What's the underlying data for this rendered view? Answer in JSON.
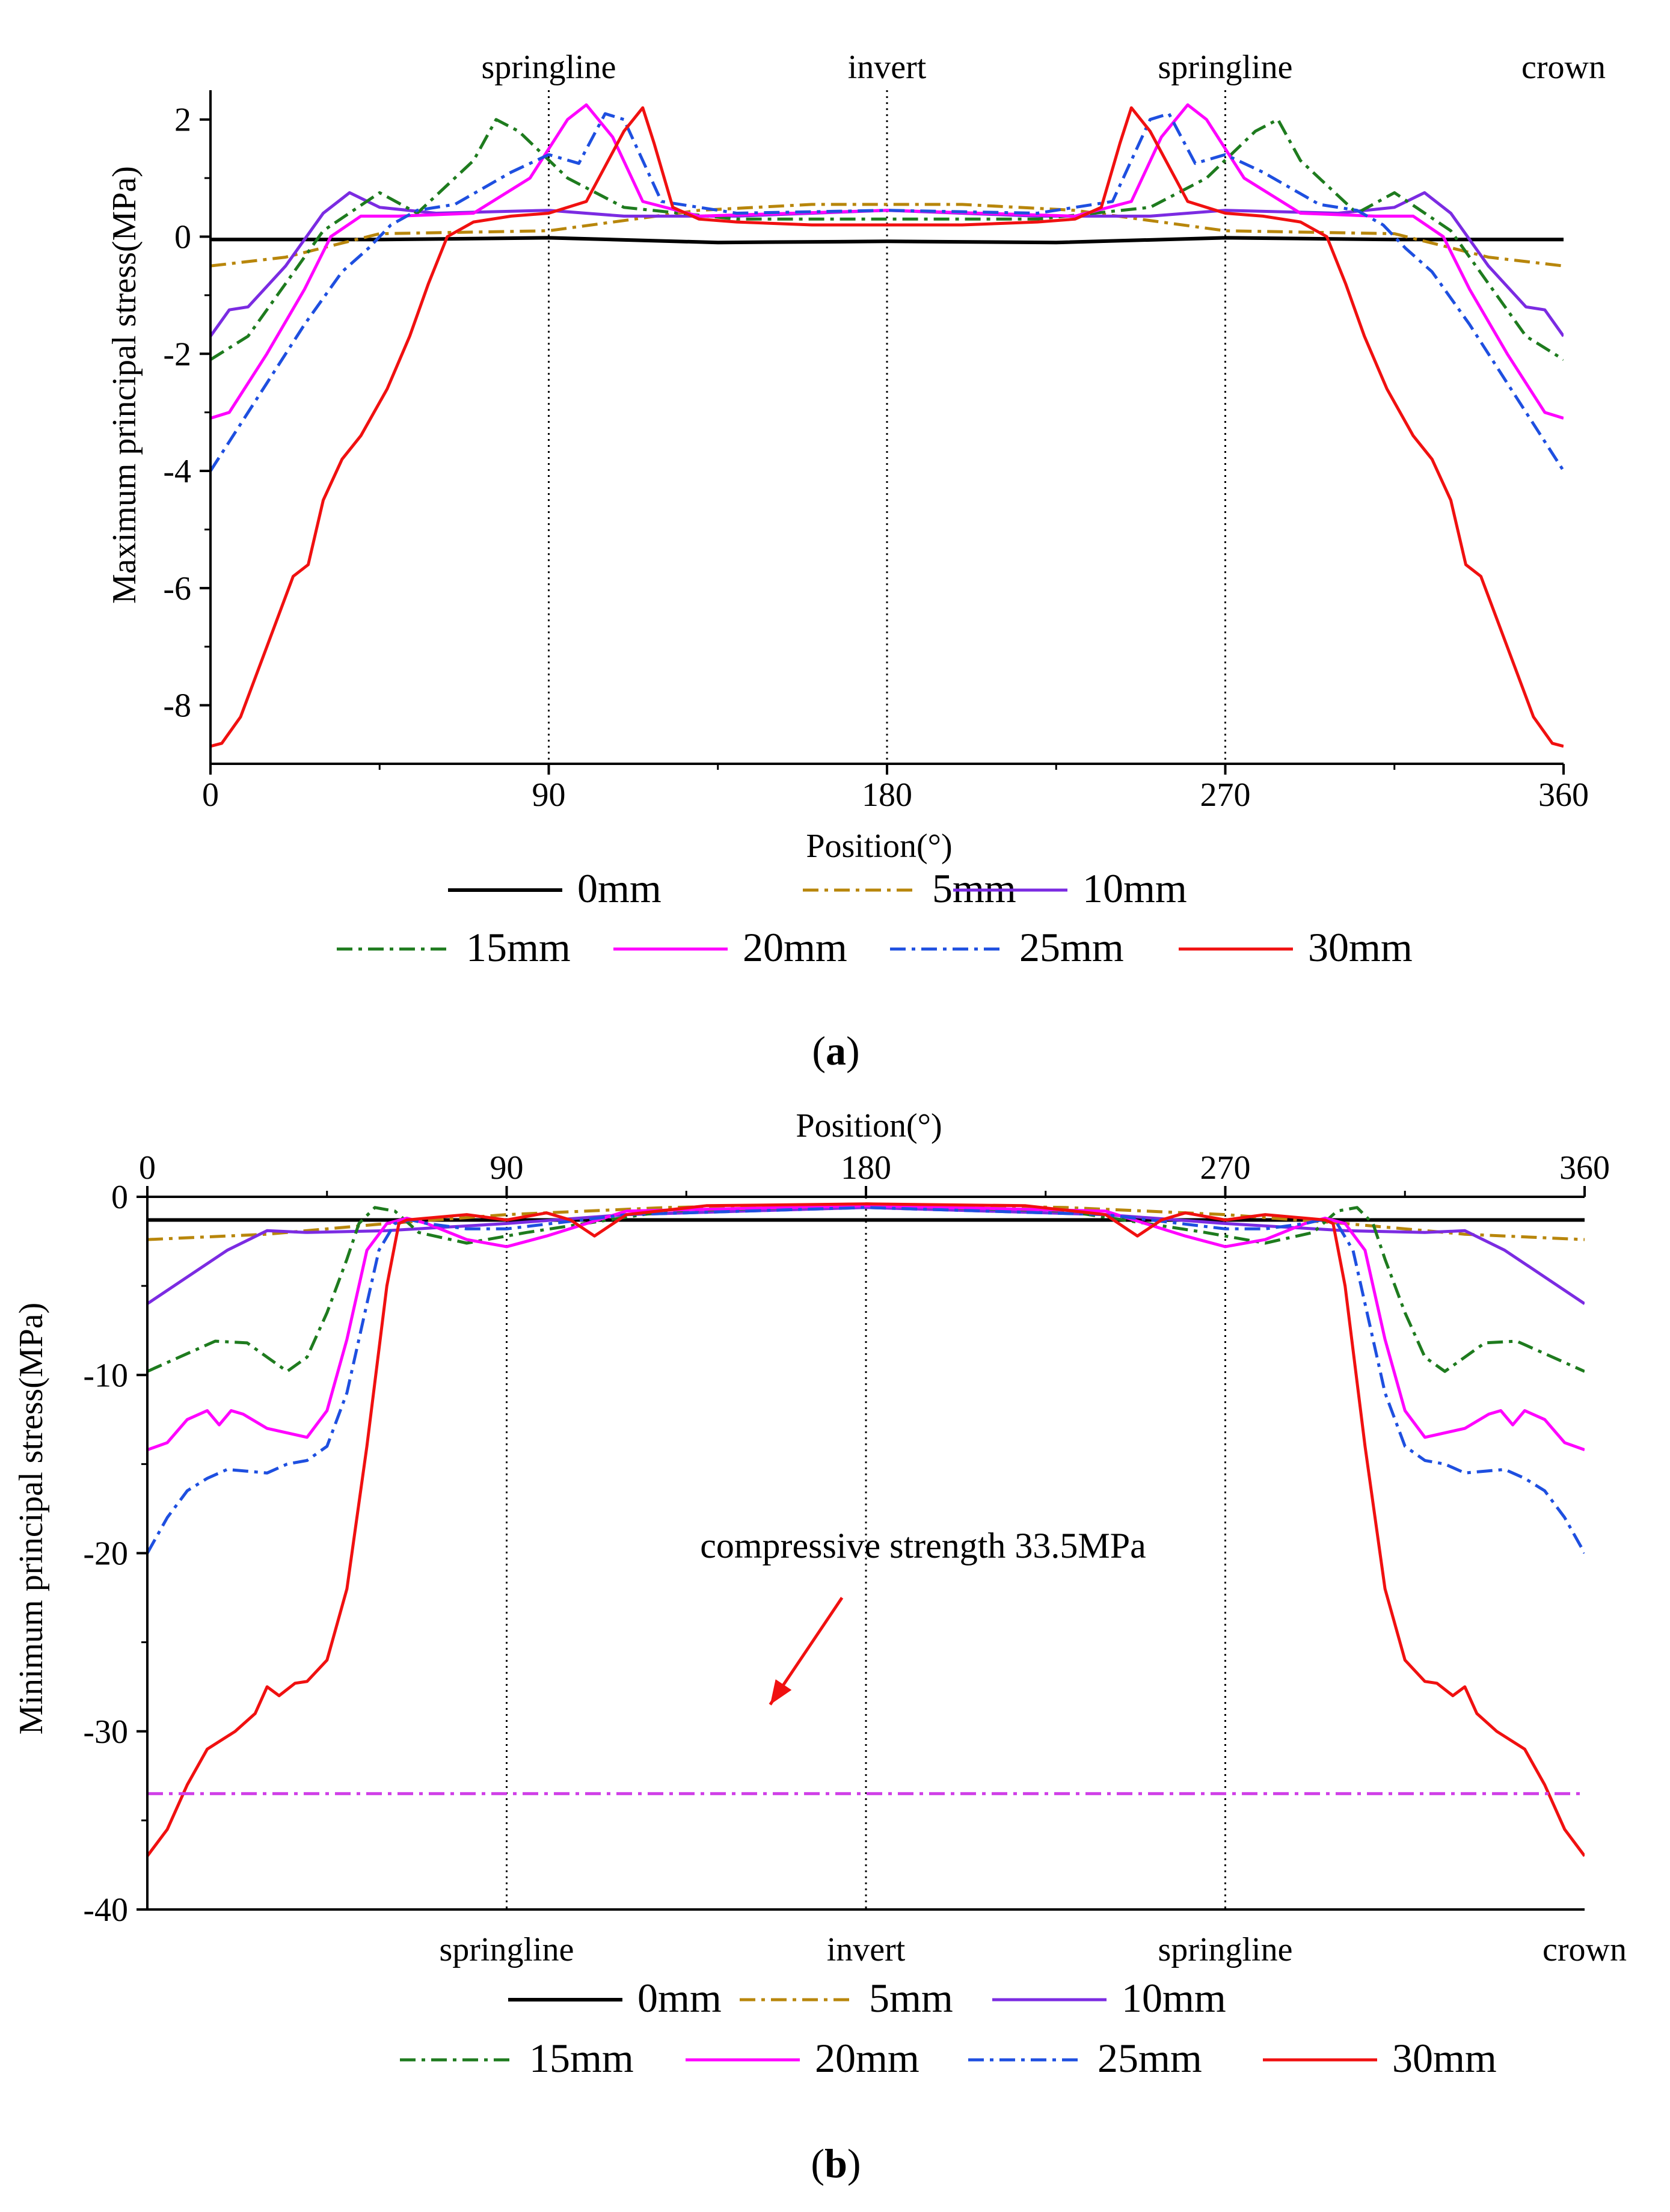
{
  "colors": {
    "s0": "#000000",
    "s5": "#B8860B",
    "s10": "#7B2BE2",
    "s15": "#1E7B1E",
    "s20": "#FF00FF",
    "s25": "#1E4FE0",
    "s30": "#F01010",
    "strength": "#D040E8",
    "arrow": "#F01010"
  },
  "chart_data": [
    {
      "type": "line",
      "caption_letter": "a",
      "xlabel": "Position(°)",
      "ylabel": "Maximum principal stress(MPa)",
      "xlim": [
        0,
        360
      ],
      "ylim": [
        -9,
        2.5
      ],
      "xticks": [
        0,
        90,
        180,
        270,
        360
      ],
      "yticks": [
        -8,
        -6,
        -4,
        -2,
        0,
        2
      ],
      "x_tick_labels": [
        "0",
        "90",
        "180",
        "270",
        "360"
      ],
      "y_tick_labels": [
        "-8",
        "-6",
        "-4",
        "-2",
        "0",
        "2"
      ],
      "reference_lines": [
        {
          "x": 90,
          "label": "springline"
        },
        {
          "x": 180,
          "label": "invert"
        },
        {
          "x": 270,
          "label": "springline"
        },
        {
          "x": 360,
          "label": "crown"
        }
      ],
      "series": [
        {
          "name": "0mm",
          "key": "s0",
          "style": "solid",
          "x": [
            0,
            45,
            90,
            135,
            180,
            225,
            270,
            315,
            360
          ],
          "y": [
            -0.05,
            -0.05,
            -0.02,
            -0.1,
            -0.08,
            -0.1,
            -0.02,
            -0.05,
            -0.05
          ]
        },
        {
          "name": "5mm",
          "key": "s5",
          "style": "dashdot",
          "x": [
            0,
            20,
            45,
            90,
            130,
            160,
            180,
            200,
            230,
            270,
            315,
            340,
            360
          ],
          "y": [
            -0.5,
            -0.35,
            0.05,
            0.1,
            0.45,
            0.55,
            0.55,
            0.55,
            0.45,
            0.1,
            0.05,
            -0.35,
            -0.5
          ]
        },
        {
          "name": "10mm",
          "key": "s10",
          "style": "solid",
          "x": [
            0,
            5,
            10,
            20,
            30,
            37,
            45,
            60,
            90,
            110,
            140,
            180,
            220,
            250,
            270,
            300,
            315,
            323,
            330,
            340,
            350,
            355,
            360
          ],
          "y": [
            -1.7,
            -1.25,
            -1.2,
            -0.5,
            0.4,
            0.75,
            0.5,
            0.4,
            0.45,
            0.35,
            0.35,
            0.45,
            0.35,
            0.35,
            0.45,
            0.4,
            0.5,
            0.75,
            0.4,
            -0.5,
            -1.2,
            -1.25,
            -1.7
          ]
        },
        {
          "name": "15mm",
          "key": "s15",
          "style": "dashdot",
          "x": [
            0,
            10,
            20,
            30,
            45,
            55,
            70,
            76,
            82,
            95,
            110,
            140,
            180,
            220,
            250,
            265,
            278,
            284,
            290,
            305,
            315,
            330,
            340,
            350,
            360
          ],
          "y": [
            -2.1,
            -1.7,
            -0.8,
            0.1,
            0.75,
            0.4,
            1.3,
            2.0,
            1.8,
            1.0,
            0.5,
            0.3,
            0.3,
            0.3,
            0.5,
            1.0,
            1.8,
            2.0,
            1.3,
            0.4,
            0.75,
            0.1,
            -0.8,
            -1.7,
            -2.1
          ]
        },
        {
          "name": "20mm",
          "key": "s20",
          "style": "solid",
          "x": [
            0,
            5,
            15,
            25,
            32,
            40,
            50,
            70,
            85,
            95,
            100,
            107,
            115,
            130,
            180,
            230,
            245,
            253,
            260,
            265,
            275,
            290,
            310,
            320,
            328,
            335,
            345,
            355,
            360
          ],
          "y": [
            -3.1,
            -3.0,
            -2.0,
            -0.9,
            0.0,
            0.35,
            0.35,
            0.4,
            1.0,
            2.0,
            2.25,
            1.7,
            0.6,
            0.35,
            0.45,
            0.35,
            0.6,
            1.7,
            2.25,
            2.0,
            1.0,
            0.4,
            0.35,
            0.35,
            0.0,
            -0.9,
            -2.0,
            -3.0,
            -3.1
          ]
        },
        {
          "name": "25mm",
          "key": "s25",
          "style": "dashdot",
          "x": [
            0,
            5,
            15,
            25,
            35,
            42,
            48,
            55,
            65,
            80,
            90,
            98,
            105,
            110,
            120,
            140,
            180,
            220,
            240,
            250,
            255,
            262,
            270,
            280,
            295,
            305,
            312,
            318,
            325,
            335,
            345,
            355,
            360
          ],
          "y": [
            -4.0,
            -3.5,
            -2.5,
            -1.5,
            -0.6,
            -0.2,
            0.2,
            0.45,
            0.55,
            1.1,
            1.4,
            1.25,
            2.1,
            2.0,
            0.6,
            0.4,
            0.45,
            0.4,
            0.6,
            2.0,
            2.1,
            1.25,
            1.4,
            1.1,
            0.55,
            0.45,
            0.2,
            -0.2,
            -0.6,
            -1.5,
            -2.5,
            -3.5,
            -4.0
          ]
        },
        {
          "name": "30mm",
          "key": "s30",
          "style": "solid",
          "x": [
            0,
            3,
            8,
            15,
            22,
            26,
            30,
            35,
            40,
            47,
            53,
            58,
            63,
            70,
            80,
            90,
            100,
            110,
            115,
            118,
            123,
            130,
            140,
            160,
            180,
            200,
            220,
            230,
            237,
            242,
            245,
            250,
            260,
            270,
            280,
            290,
            297,
            302,
            307,
            313,
            320,
            325,
            330,
            334,
            338,
            345,
            352,
            357,
            360
          ],
          "y": [
            -8.7,
            -8.65,
            -8.2,
            -7.0,
            -5.8,
            -5.6,
            -4.5,
            -3.8,
            -3.4,
            -2.6,
            -1.7,
            -0.8,
            0.0,
            0.25,
            0.35,
            0.4,
            0.6,
            1.8,
            2.2,
            1.6,
            0.5,
            0.3,
            0.25,
            0.2,
            0.2,
            0.2,
            0.25,
            0.3,
            0.5,
            1.6,
            2.2,
            1.8,
            0.6,
            0.4,
            0.35,
            0.25,
            0.0,
            -0.8,
            -1.7,
            -2.6,
            -3.4,
            -3.8,
            -4.5,
            -5.6,
            -5.8,
            -7.0,
            -8.2,
            -8.65,
            -8.7
          ]
        }
      ]
    },
    {
      "type": "line",
      "caption_letter": "b",
      "xlabel": "Position(°)",
      "ylabel": "Minimum principal stress(MPa)",
      "xlim": [
        0,
        360
      ],
      "ylim": [
        -40,
        0
      ],
      "xticks": [
        0,
        90,
        180,
        270,
        360
      ],
      "yticks": [
        -40,
        -30,
        -20,
        -10,
        0
      ],
      "x_tick_labels": [
        "0",
        "90",
        "180",
        "270",
        "360"
      ],
      "y_tick_labels": [
        "-40",
        "-30",
        "-20",
        "-10",
        "0"
      ],
      "reference_lines": [
        {
          "x": 90,
          "label": "springline"
        },
        {
          "x": 180,
          "label": "invert"
        },
        {
          "x": 270,
          "label": "springline"
        },
        {
          "x": 360,
          "label": "crown"
        }
      ],
      "annotation": {
        "text": "compressive strength 33.5MPa",
        "arrow_from": [
          174,
          -22.5
        ],
        "arrow_to": [
          156,
          -28.5
        ]
      },
      "series": [
        {
          "name": "0mm",
          "key": "s0",
          "style": "solid",
          "x": [
            0,
            360
          ],
          "y": [
            -1.3,
            -1.3
          ]
        },
        {
          "name": "5mm",
          "key": "s5",
          "style": "dashdot",
          "x": [
            0,
            30,
            60,
            90,
            130,
            180,
            230,
            270,
            300,
            330,
            360
          ],
          "y": [
            -2.4,
            -2.1,
            -1.5,
            -1.0,
            -0.6,
            -0.4,
            -0.6,
            -1.0,
            -1.5,
            -2.1,
            -2.4
          ]
        },
        {
          "name": "10mm",
          "key": "s10",
          "style": "solid",
          "x": [
            0,
            10,
            20,
            30,
            40,
            60,
            90,
            120,
            180,
            240,
            270,
            300,
            320,
            330,
            340,
            350,
            360
          ],
          "y": [
            -6.0,
            -4.5,
            -3.0,
            -1.9,
            -2.0,
            -1.9,
            -1.5,
            -1.0,
            -0.6,
            -1.0,
            -1.5,
            -1.9,
            -2.0,
            -1.9,
            -3.0,
            -4.5,
            -6.0
          ]
        },
        {
          "name": "15mm",
          "key": "s15",
          "style": "dashdot",
          "x": [
            0,
            10,
            17,
            25,
            30,
            35,
            40,
            45,
            50,
            53,
            57,
            62,
            68,
            80,
            95,
            130,
            180,
            230,
            265,
            280,
            292,
            298,
            303,
            307,
            310,
            315,
            320,
            325,
            330,
            335,
            343,
            350,
            360
          ],
          "y": [
            -9.8,
            -8.8,
            -8.1,
            -8.2,
            -9.0,
            -9.8,
            -9.0,
            -6.5,
            -3.5,
            -1.5,
            -0.6,
            -0.8,
            -2.0,
            -2.6,
            -2.0,
            -0.8,
            -0.5,
            -0.8,
            -2.0,
            -2.6,
            -2.0,
            -0.8,
            -0.6,
            -1.5,
            -3.5,
            -6.5,
            -9.0,
            -9.8,
            -9.0,
            -8.2,
            -8.1,
            -8.8,
            -9.8
          ]
        },
        {
          "name": "20mm",
          "key": "s20",
          "style": "solid",
          "x": [
            0,
            5,
            10,
            15,
            18,
            21,
            24,
            30,
            40,
            45,
            50,
            55,
            60,
            65,
            70,
            80,
            90,
            100,
            120,
            180,
            240,
            260,
            270,
            280,
            290,
            295,
            300,
            305,
            310,
            315,
            320,
            330,
            336,
            339,
            342,
            345,
            350,
            355,
            360
          ],
          "y": [
            -14.2,
            -13.8,
            -12.5,
            -12.0,
            -12.8,
            -12.0,
            -12.2,
            -13.0,
            -13.5,
            -12.0,
            -8.0,
            -3.0,
            -1.5,
            -1.2,
            -1.5,
            -2.4,
            -2.8,
            -2.2,
            -0.8,
            -0.5,
            -0.8,
            -2.2,
            -2.8,
            -2.4,
            -1.5,
            -1.2,
            -1.5,
            -3.0,
            -8.0,
            -12.0,
            -13.5,
            -13.0,
            -12.2,
            -12.0,
            -12.8,
            -12.0,
            -12.5,
            -13.8,
            -14.2
          ]
        },
        {
          "name": "25mm",
          "key": "s25",
          "style": "dashdot",
          "x": [
            0,
            5,
            10,
            15,
            20,
            25,
            30,
            35,
            40,
            45,
            50,
            55,
            58,
            62,
            66,
            70,
            80,
            90,
            120,
            180,
            240,
            270,
            280,
            290,
            294,
            298,
            302,
            305,
            310,
            315,
            320,
            325,
            330,
            335,
            340,
            345,
            350,
            355,
            360
          ],
          "y": [
            -20.0,
            -18.0,
            -16.5,
            -15.8,
            -15.3,
            -15.4,
            -15.5,
            -15.0,
            -14.8,
            -14.0,
            -11.0,
            -6.0,
            -3.0,
            -1.5,
            -1.3,
            -1.5,
            -1.8,
            -1.8,
            -1.0,
            -0.6,
            -1.0,
            -1.8,
            -1.8,
            -1.5,
            -1.3,
            -1.5,
            -3.0,
            -6.0,
            -11.0,
            -14.0,
            -14.8,
            -15.0,
            -15.5,
            -15.4,
            -15.3,
            -15.8,
            -16.5,
            -18.0,
            -20.0
          ]
        },
        {
          "name": "30mm",
          "key": "s30",
          "style": "solid",
          "x": [
            0,
            5,
            10,
            15,
            22,
            27,
            30,
            33,
            37,
            40,
            45,
            50,
            55,
            60,
            63,
            65,
            70,
            80,
            90,
            100,
            106,
            112,
            120,
            140,
            180,
            220,
            240,
            248,
            254,
            260,
            270,
            280,
            290,
            295,
            297,
            300,
            305,
            310,
            315,
            320,
            323,
            327,
            330,
            333,
            338,
            345,
            350,
            355,
            360
          ],
          "y": [
            -37.0,
            -35.5,
            -33.0,
            -31.0,
            -30.0,
            -29.0,
            -27.5,
            -28.0,
            -27.3,
            -27.2,
            -26.0,
            -22.0,
            -14.0,
            -5.0,
            -1.5,
            -1.3,
            -1.2,
            -1.0,
            -1.3,
            -0.9,
            -1.3,
            -2.2,
            -1.0,
            -0.5,
            -0.4,
            -0.5,
            -1.0,
            -2.2,
            -1.3,
            -0.9,
            -1.3,
            -1.0,
            -1.2,
            -1.3,
            -1.5,
            -5.0,
            -14.0,
            -22.0,
            -26.0,
            -27.2,
            -27.3,
            -28.0,
            -27.5,
            -29.0,
            -30.0,
            -31.0,
            -33.0,
            -35.5,
            -37.0
          ]
        },
        {
          "name": "compressive strength",
          "key": "strength",
          "style": "dashdot",
          "legend": false,
          "x": [
            0,
            360
          ],
          "y": [
            -33.5,
            -33.5
          ]
        }
      ]
    }
  ],
  "legend": {
    "row1": [
      "0mm",
      "5mm",
      "10mm"
    ],
    "row2": [
      "15mm",
      "20mm",
      "25mm",
      "30mm"
    ]
  }
}
